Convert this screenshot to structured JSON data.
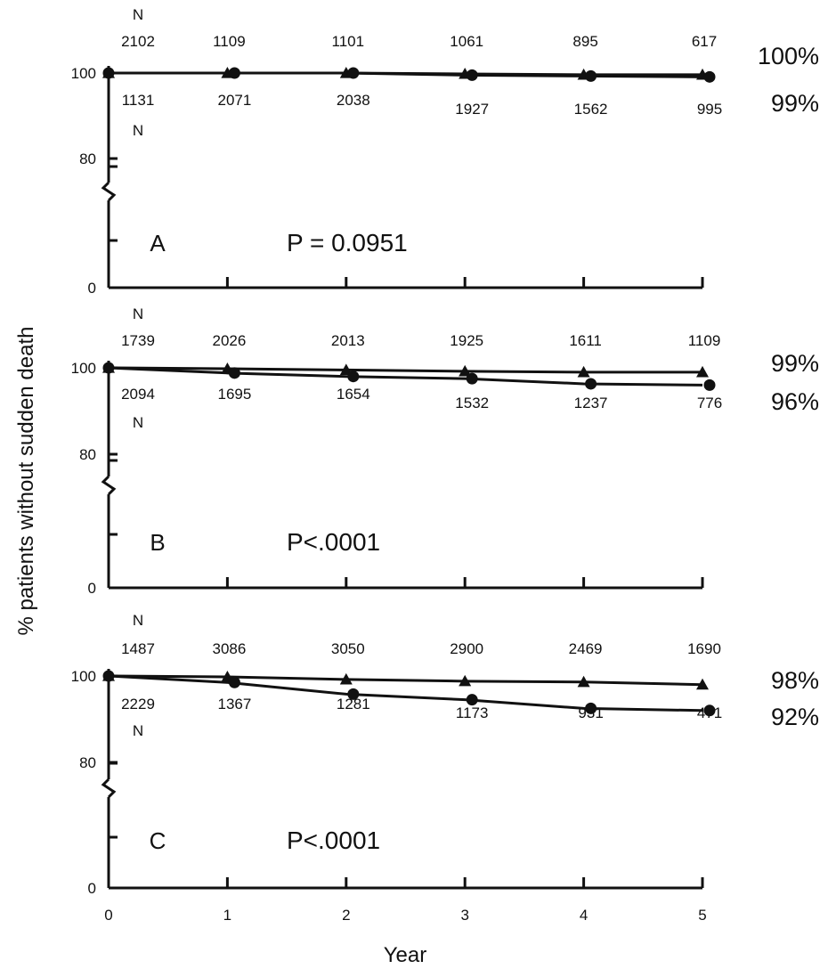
{
  "chart_data": [
    {
      "type": "line",
      "panel": "A",
      "p_value": "P = 0.0951",
      "ylim": [
        0,
        100
      ],
      "yticks": [
        "0",
        "80",
        "100"
      ],
      "x": [
        0,
        1,
        2,
        3,
        4,
        5
      ],
      "top_n_label": "N",
      "bottom_n_label": "N",
      "top_n": [
        "2102",
        "1109",
        "1101",
        "1061",
        "895",
        "617"
      ],
      "bottom_n": [
        "1131",
        "2071",
        "2038",
        "1927",
        "1562",
        "995"
      ],
      "end_labels": [
        "100%",
        "99%"
      ],
      "series": [
        {
          "marker": "triangle",
          "values": [
            100,
            100,
            100,
            99.8,
            99.6,
            99.6
          ]
        },
        {
          "marker": "circle",
          "values": [
            100,
            100,
            100,
            99.5,
            99.3,
            99.1
          ]
        }
      ]
    },
    {
      "type": "line",
      "panel": "B",
      "p_value": "P<.0001",
      "ylim": [
        0,
        100
      ],
      "yticks": [
        "0",
        "80",
        "100"
      ],
      "x": [
        0,
        1,
        2,
        3,
        4,
        5
      ],
      "top_n_label": "N",
      "bottom_n_label": "N",
      "top_n": [
        "1739",
        "2026",
        "2013",
        "1925",
        "1611",
        "1109"
      ],
      "bottom_n": [
        "2094",
        "1695",
        "1654",
        "1532",
        "1237",
        "776"
      ],
      "end_labels": [
        "99%",
        "96%"
      ],
      "series": [
        {
          "marker": "triangle",
          "values": [
            100,
            99.8,
            99.5,
            99.2,
            99,
            99
          ]
        },
        {
          "marker": "circle",
          "values": [
            100,
            98.8,
            98,
            97.5,
            96.3,
            96
          ]
        }
      ]
    },
    {
      "type": "line",
      "panel": "C",
      "p_value": "P<.0001",
      "ylim": [
        0,
        100
      ],
      "yticks": [
        "0",
        "80",
        "100"
      ],
      "x": [
        0,
        1,
        2,
        3,
        4,
        5
      ],
      "top_n_label": "N",
      "bottom_n_label": "N",
      "top_n": [
        "1487",
        "3086",
        "3050",
        "2900",
        "2469",
        "1690"
      ],
      "bottom_n": [
        "2229",
        "1367",
        "1281",
        "1173",
        "931",
        "471"
      ],
      "end_labels": [
        "98%",
        "92%"
      ],
      "series": [
        {
          "marker": "triangle",
          "values": [
            100,
            99.8,
            99.2,
            98.8,
            98.6,
            98
          ]
        },
        {
          "marker": "circle",
          "values": [
            100,
            98.5,
            95.8,
            94.5,
            92.5,
            92
          ]
        }
      ]
    }
  ],
  "xticks": [
    "0",
    "1",
    "2",
    "3",
    "4",
    "5"
  ],
  "xlabel": "Year",
  "ylabel": "% patients without sudden death"
}
